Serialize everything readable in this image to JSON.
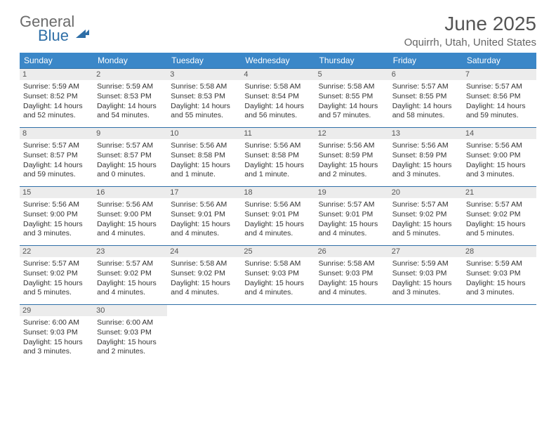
{
  "logo": {
    "word1": "General",
    "word2": "Blue"
  },
  "title": "June 2025",
  "location": "Oquirrh, Utah, United States",
  "colors": {
    "header_bg": "#3b87c8",
    "rule": "#2f6fa7",
    "daynum_bg": "#ececec",
    "text": "#333333"
  },
  "dows": [
    "Sunday",
    "Monday",
    "Tuesday",
    "Wednesday",
    "Thursday",
    "Friday",
    "Saturday"
  ],
  "weeks": [
    [
      {
        "n": "1",
        "sr": "5:59 AM",
        "ss": "8:52 PM",
        "dl": "14 hours and 52 minutes."
      },
      {
        "n": "2",
        "sr": "5:59 AM",
        "ss": "8:53 PM",
        "dl": "14 hours and 54 minutes."
      },
      {
        "n": "3",
        "sr": "5:58 AM",
        "ss": "8:53 PM",
        "dl": "14 hours and 55 minutes."
      },
      {
        "n": "4",
        "sr": "5:58 AM",
        "ss": "8:54 PM",
        "dl": "14 hours and 56 minutes."
      },
      {
        "n": "5",
        "sr": "5:58 AM",
        "ss": "8:55 PM",
        "dl": "14 hours and 57 minutes."
      },
      {
        "n": "6",
        "sr": "5:57 AM",
        "ss": "8:55 PM",
        "dl": "14 hours and 58 minutes."
      },
      {
        "n": "7",
        "sr": "5:57 AM",
        "ss": "8:56 PM",
        "dl": "14 hours and 59 minutes."
      }
    ],
    [
      {
        "n": "8",
        "sr": "5:57 AM",
        "ss": "8:57 PM",
        "dl": "14 hours and 59 minutes."
      },
      {
        "n": "9",
        "sr": "5:57 AM",
        "ss": "8:57 PM",
        "dl": "15 hours and 0 minutes."
      },
      {
        "n": "10",
        "sr": "5:56 AM",
        "ss": "8:58 PM",
        "dl": "15 hours and 1 minute."
      },
      {
        "n": "11",
        "sr": "5:56 AM",
        "ss": "8:58 PM",
        "dl": "15 hours and 1 minute."
      },
      {
        "n": "12",
        "sr": "5:56 AM",
        "ss": "8:59 PM",
        "dl": "15 hours and 2 minutes."
      },
      {
        "n": "13",
        "sr": "5:56 AM",
        "ss": "8:59 PM",
        "dl": "15 hours and 3 minutes."
      },
      {
        "n": "14",
        "sr": "5:56 AM",
        "ss": "9:00 PM",
        "dl": "15 hours and 3 minutes."
      }
    ],
    [
      {
        "n": "15",
        "sr": "5:56 AM",
        "ss": "9:00 PM",
        "dl": "15 hours and 3 minutes."
      },
      {
        "n": "16",
        "sr": "5:56 AM",
        "ss": "9:00 PM",
        "dl": "15 hours and 4 minutes."
      },
      {
        "n": "17",
        "sr": "5:56 AM",
        "ss": "9:01 PM",
        "dl": "15 hours and 4 minutes."
      },
      {
        "n": "18",
        "sr": "5:56 AM",
        "ss": "9:01 PM",
        "dl": "15 hours and 4 minutes."
      },
      {
        "n": "19",
        "sr": "5:57 AM",
        "ss": "9:01 PM",
        "dl": "15 hours and 4 minutes."
      },
      {
        "n": "20",
        "sr": "5:57 AM",
        "ss": "9:02 PM",
        "dl": "15 hours and 5 minutes."
      },
      {
        "n": "21",
        "sr": "5:57 AM",
        "ss": "9:02 PM",
        "dl": "15 hours and 5 minutes."
      }
    ],
    [
      {
        "n": "22",
        "sr": "5:57 AM",
        "ss": "9:02 PM",
        "dl": "15 hours and 5 minutes."
      },
      {
        "n": "23",
        "sr": "5:57 AM",
        "ss": "9:02 PM",
        "dl": "15 hours and 4 minutes."
      },
      {
        "n": "24",
        "sr": "5:58 AM",
        "ss": "9:02 PM",
        "dl": "15 hours and 4 minutes."
      },
      {
        "n": "25",
        "sr": "5:58 AM",
        "ss": "9:03 PM",
        "dl": "15 hours and 4 minutes."
      },
      {
        "n": "26",
        "sr": "5:58 AM",
        "ss": "9:03 PM",
        "dl": "15 hours and 4 minutes."
      },
      {
        "n": "27",
        "sr": "5:59 AM",
        "ss": "9:03 PM",
        "dl": "15 hours and 3 minutes."
      },
      {
        "n": "28",
        "sr": "5:59 AM",
        "ss": "9:03 PM",
        "dl": "15 hours and 3 minutes."
      }
    ],
    [
      {
        "n": "29",
        "sr": "6:00 AM",
        "ss": "9:03 PM",
        "dl": "15 hours and 3 minutes."
      },
      {
        "n": "30",
        "sr": "6:00 AM",
        "ss": "9:03 PM",
        "dl": "15 hours and 2 minutes."
      },
      null,
      null,
      null,
      null,
      null
    ]
  ],
  "labels": {
    "sunrise": "Sunrise: ",
    "sunset": "Sunset: ",
    "daylight": "Daylight: "
  }
}
